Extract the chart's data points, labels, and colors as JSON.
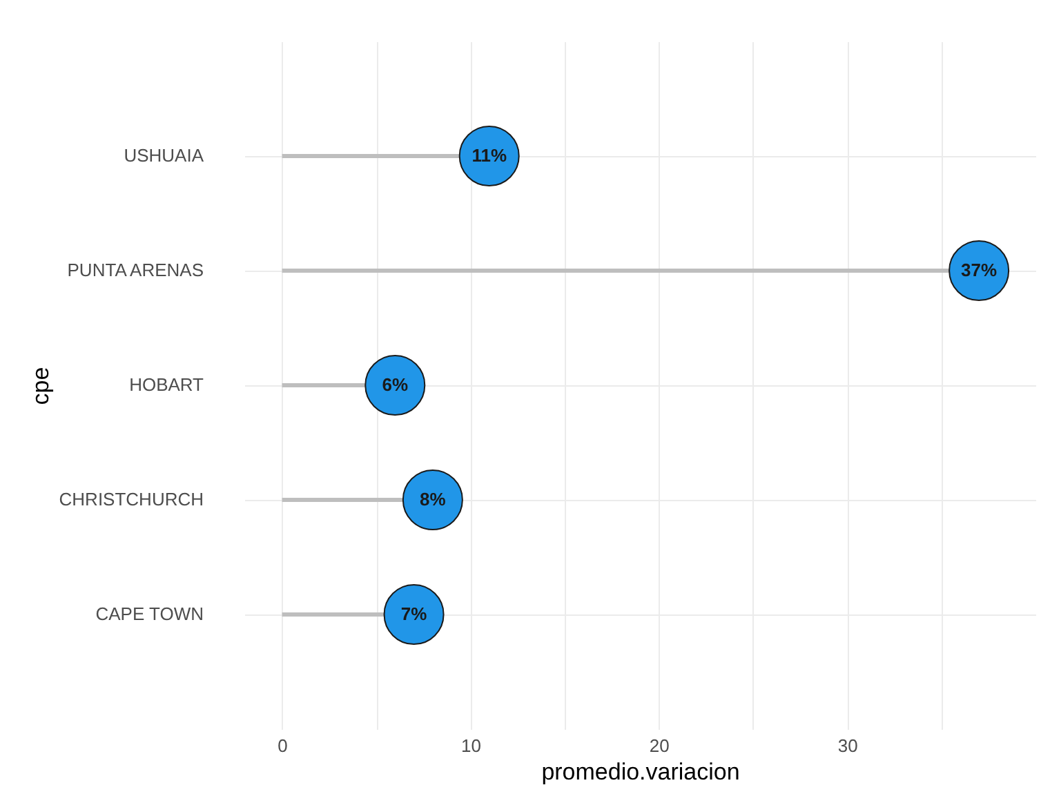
{
  "chart_data": {
    "type": "lollipop",
    "orientation": "horizontal",
    "categories": [
      "USHUAIA",
      "PUNTA ARENAS",
      "HOBART",
      "CHRISTCHURCH",
      "CAPE TOWN"
    ],
    "values": [
      11,
      37,
      6,
      8,
      7
    ],
    "value_labels": [
      "11%",
      "37%",
      "6%",
      "8%",
      "7%"
    ],
    "color": "#2196e8",
    "xlabel": "promedio.variacion",
    "ylabel": "cpe",
    "xlim": [
      -2,
      40
    ],
    "xticks": [
      0,
      {
        "value": 5,
        "label": null
      },
      10,
      {
        "value": 15,
        "label": null
      },
      20,
      {
        "value": 25,
        "label": null
      },
      30,
      {
        "value": 35,
        "label": null
      }
    ],
    "grid": true
  }
}
